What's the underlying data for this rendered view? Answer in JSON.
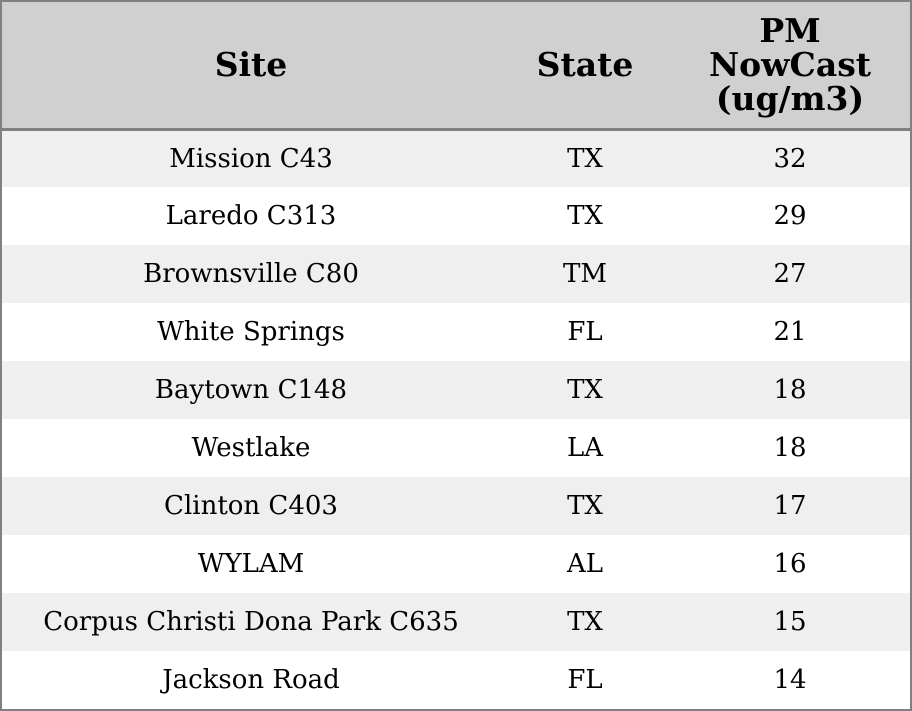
{
  "chart_data": {
    "type": "table",
    "columns": [
      "Site",
      "State",
      "PM NowCast (ug/m3)"
    ],
    "header_lines": {
      "site": "Site",
      "state": "State",
      "pm": [
        "PM",
        "NowCast",
        "(ug/m3)"
      ]
    },
    "rows": [
      {
        "site": "Mission C43",
        "state": "TX",
        "pm": 32
      },
      {
        "site": "Laredo C313",
        "state": "TX",
        "pm": 29
      },
      {
        "site": "Brownsville C80",
        "state": "TM",
        "pm": 27
      },
      {
        "site": "White Springs",
        "state": "FL",
        "pm": 21
      },
      {
        "site": "Baytown C148",
        "state": "TX",
        "pm": 18
      },
      {
        "site": "Westlake",
        "state": "LA",
        "pm": 18
      },
      {
        "site": "Clinton C403",
        "state": "TX",
        "pm": 17
      },
      {
        "site": "WYLAM",
        "state": "AL",
        "pm": 16
      },
      {
        "site": "Corpus Christi Dona Park C635",
        "state": "TX",
        "pm": 15
      },
      {
        "site": "Jackson Road",
        "state": "FL",
        "pm": 14
      }
    ]
  },
  "colors": {
    "header_bg": "#d0d0d0",
    "row_alt_bg": "#efefef",
    "row_bg": "#ffffff",
    "border": "#808080"
  }
}
